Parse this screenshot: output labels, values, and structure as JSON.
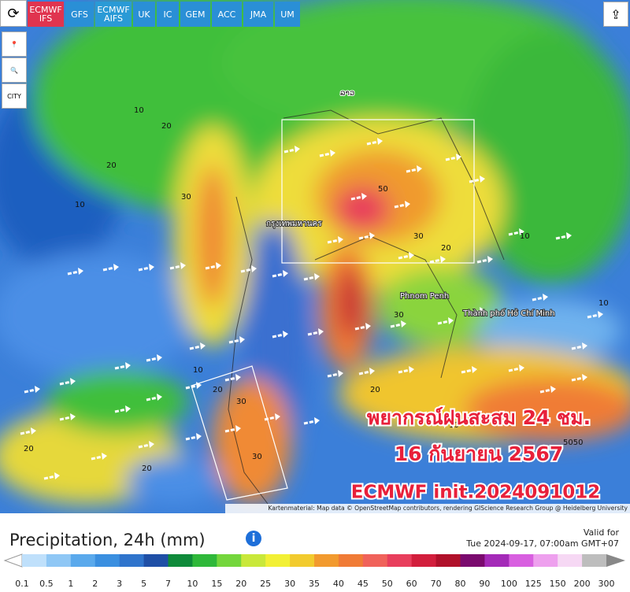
{
  "toolbar": {
    "models": [
      "ECMWF IFS",
      "GFS",
      "ECMWF AIFS",
      "UK",
      "IC",
      "GEM",
      "ACC",
      "JMA",
      "UM"
    ],
    "city_button": "CITY"
  },
  "map": {
    "places": [
      "ລາວ",
      "กรุงเทพมหานคร",
      "Phnom Penh",
      "Thành phố Hồ Chí Minh"
    ],
    "contour_labels": [
      "10",
      "20",
      "10",
      "30",
      "20",
      "10",
      "20",
      "30",
      "50",
      "30",
      "20",
      "10",
      "30",
      "20",
      "10",
      "30",
      "20",
      "5050",
      "10",
      "20"
    ],
    "overlay": [
      "พยากรณ์ฝนสะสม 24 ชม.",
      "16 กันยายน 2567",
      "ECMWF init.2024091012"
    ],
    "attribution": "Kartenmaterial: Map data © OpenStreetMap contributors, rendering GIScience Research Group @ Heidelberg University"
  },
  "footer": {
    "title": "Precipitation, 24h (mm)",
    "valid_label": "Valid for",
    "valid_time": "Tue 2024-09-17, 07:00am GMT+07"
  },
  "legend": {
    "ticks": [
      0.1,
      0.5,
      1,
      2,
      3,
      5,
      7,
      10,
      15,
      20,
      25,
      30,
      35,
      40,
      45,
      50,
      60,
      70,
      80,
      90,
      100,
      125,
      150,
      200,
      300
    ],
    "colors": [
      "#bfe0fb",
      "#8fc7f5",
      "#5aa9ec",
      "#3a8fe0",
      "#2f74cc",
      "#1f4fa6",
      "#0f8a3a",
      "#2fb83a",
      "#74d63c",
      "#c9e83a",
      "#f2f035",
      "#f2cb2e",
      "#f29a2e",
      "#f07b36",
      "#f0625a",
      "#e83e5c",
      "#d21e3c",
      "#b0102a",
      "#7a0a6e",
      "#a42ab8",
      "#d85fe0",
      "#eea0ee",
      "#f6d8f4",
      "#bdbdbd"
    ]
  }
}
